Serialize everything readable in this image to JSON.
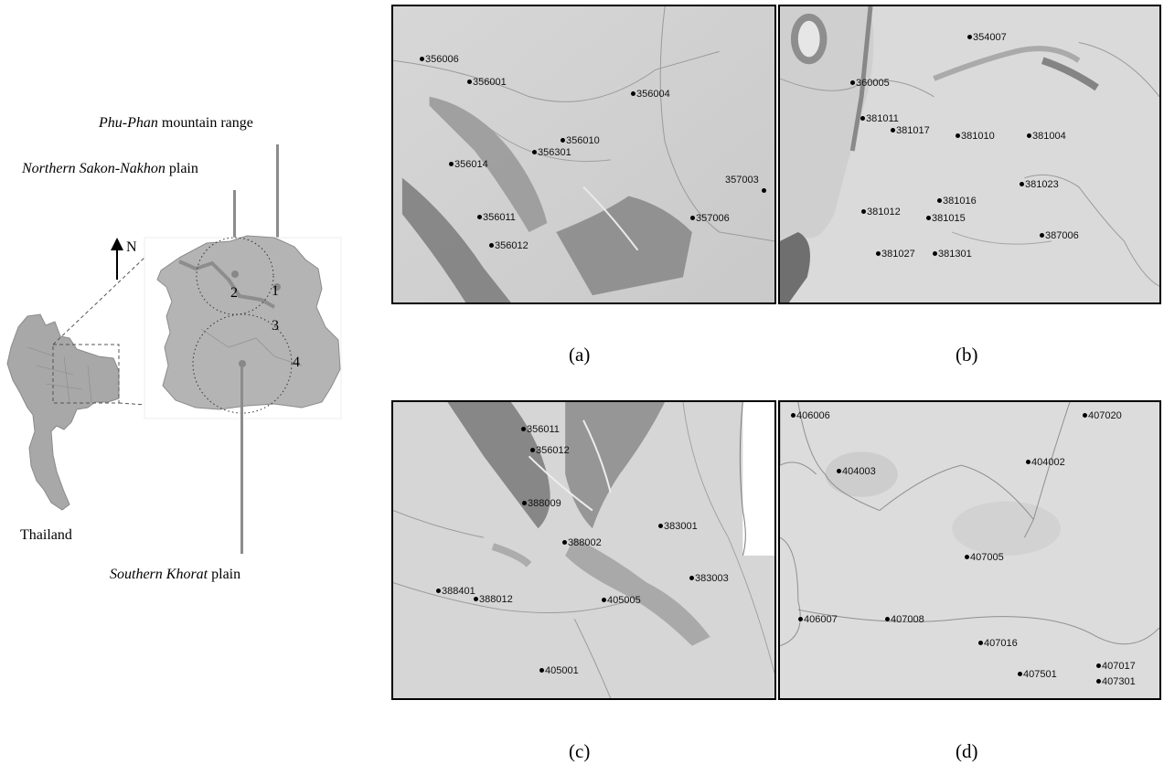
{
  "overview": {
    "labels": {
      "phu_phan": {
        "italic": "Phu-Phan",
        "rest": " mountain range"
      },
      "northern": {
        "italic": "Northern Sakon-Nakhon",
        "rest": " plain"
      },
      "southern": {
        "italic": "Southern Khorat",
        "rest": " plain"
      }
    },
    "north": "N",
    "country": "Thailand",
    "zones": [
      "1",
      "2",
      "3",
      "4"
    ]
  },
  "panels": {
    "a": {
      "caption": "(a)",
      "stations": [
        "356006",
        "356001",
        "356004",
        "356010",
        "356301",
        "356014",
        "357003",
        "356011",
        "357006",
        "356012"
      ]
    },
    "b": {
      "caption": "(b)",
      "stations": [
        "354007",
        "360005",
        "381011",
        "381017",
        "381010",
        "381004",
        "381023",
        "381016",
        "381012",
        "381015",
        "387006",
        "381027",
        "381301"
      ]
    },
    "c": {
      "caption": "(c)",
      "stations": [
        "356011",
        "356012",
        "388009",
        "383001",
        "388002",
        "383003",
        "388401",
        "388012",
        "405005",
        "405001"
      ]
    },
    "d": {
      "caption": "(d)",
      "stations": [
        "406006",
        "407020",
        "404002",
        "404003",
        "407005",
        "406007",
        "407008",
        "407016",
        "407017",
        "407501",
        "407301"
      ]
    }
  }
}
